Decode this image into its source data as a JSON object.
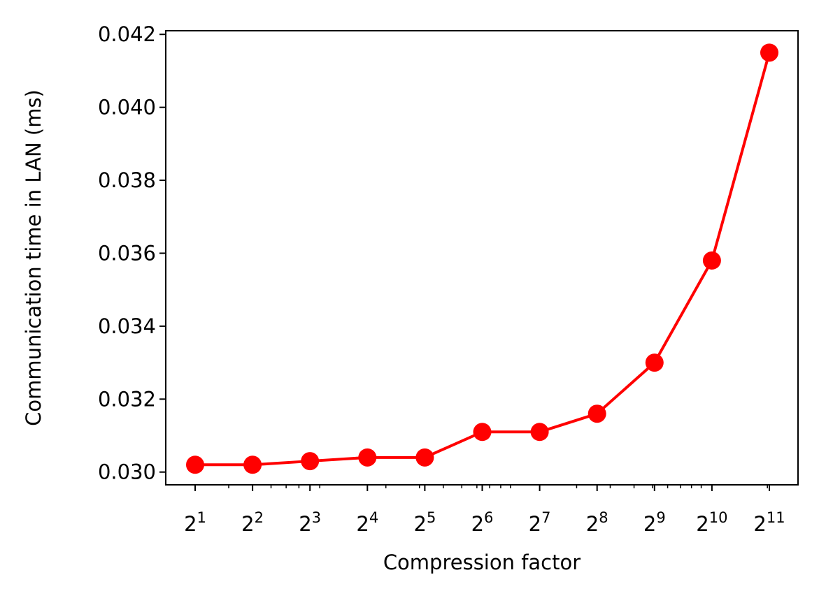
{
  "chart_data": {
    "type": "line",
    "title": "",
    "xlabel": "Compression factor",
    "ylabel": "Communication time in LAN (ms)",
    "x_scale": "log2",
    "x": [
      2,
      4,
      8,
      16,
      32,
      64,
      128,
      256,
      512,
      1024,
      2048
    ],
    "x_tick_labels": [
      {
        "base": "2",
        "exp": "1"
      },
      {
        "base": "2",
        "exp": "2"
      },
      {
        "base": "2",
        "exp": "3"
      },
      {
        "base": "2",
        "exp": "4"
      },
      {
        "base": "2",
        "exp": "5"
      },
      {
        "base": "2",
        "exp": "6"
      },
      {
        "base": "2",
        "exp": "7"
      },
      {
        "base": "2",
        "exp": "8"
      },
      {
        "base": "2",
        "exp": "9"
      },
      {
        "base": "2",
        "exp": "10"
      },
      {
        "base": "2",
        "exp": "11"
      }
    ],
    "y_ticks": [
      "0.030",
      "0.032",
      "0.034",
      "0.036",
      "0.038",
      "0.040",
      "0.042"
    ],
    "ylim": [
      0.02965,
      0.0421
    ],
    "series": [
      {
        "color": "#ff0000",
        "marker": "circle",
        "values": [
          0.0302,
          0.0302,
          0.0303,
          0.0304,
          0.0304,
          0.0311,
          0.0311,
          0.0316,
          0.033,
          0.0358,
          0.0415
        ]
      }
    ],
    "grid": false,
    "legend": false
  }
}
